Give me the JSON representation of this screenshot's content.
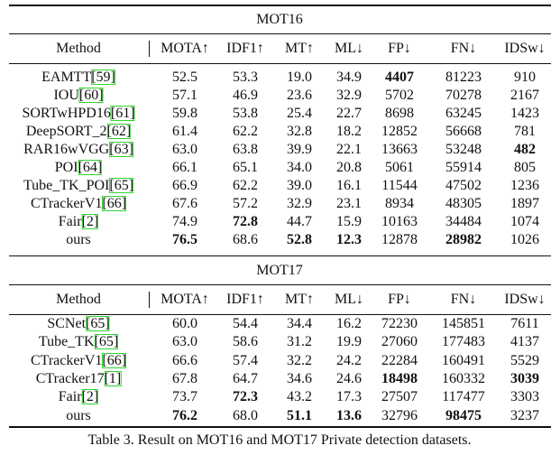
{
  "sections": [
    {
      "title": "MOT16",
      "header": [
        "Method",
        "MOTA↑",
        "IDF1↑",
        "MT↑",
        "ML↓",
        "FP↓",
        "FN↓",
        "IDSw↓"
      ],
      "rows": [
        {
          "method": "EAMTT",
          "cite": "[59]",
          "values": [
            "52.5",
            "53.3",
            "19.0",
            "34.9",
            "4407",
            "81223",
            "910"
          ],
          "bold": [
            4
          ]
        },
        {
          "method": "IOU",
          "cite": "[60]",
          "values": [
            "57.1",
            "46.9",
            "23.6",
            "32.9",
            "5702",
            "70278",
            "2167"
          ],
          "bold": []
        },
        {
          "method": "SORTwHPD16",
          "cite": "[61]",
          "values": [
            "59.8",
            "53.8",
            "25.4",
            "22.7",
            "8698",
            "63245",
            "1423"
          ],
          "bold": []
        },
        {
          "method": "DeepSORT_2",
          "cite": "[62]",
          "values": [
            "61.4",
            "62.2",
            "32.8",
            "18.2",
            "12852",
            "56668",
            "781"
          ],
          "bold": []
        },
        {
          "method": "RAR16wVGG",
          "cite": "[63]",
          "values": [
            "63.0",
            "63.8",
            "39.9",
            "22.1",
            "13663",
            "53248",
            "482"
          ],
          "bold": [
            6
          ]
        },
        {
          "method": "POI",
          "cite": "[64]",
          "values": [
            "66.1",
            "65.1",
            "34.0",
            "20.8",
            "5061",
            "55914",
            "805"
          ],
          "bold": []
        },
        {
          "method": "Tube_TK_POI",
          "cite": "[65]",
          "values": [
            "66.9",
            "62.2",
            "39.0",
            "16.1",
            "11544",
            "47502",
            "1236"
          ],
          "bold": []
        },
        {
          "method": "CTrackerV1",
          "cite": "[66]",
          "values": [
            "67.6",
            "57.2",
            "32.9",
            "23.1",
            "8934",
            "48305",
            "1897"
          ],
          "bold": []
        },
        {
          "method": "Fair",
          "cite": "[2]",
          "values": [
            "74.9",
            "72.8",
            "44.7",
            "15.9",
            "10163",
            "34484",
            "1074"
          ],
          "bold": [
            1
          ]
        },
        {
          "method": "ours",
          "cite": null,
          "values": [
            "76.5",
            "68.6",
            "52.8",
            "12.3",
            "12878",
            "28982",
            "1026"
          ],
          "bold": [
            0,
            2,
            3,
            5
          ]
        }
      ]
    },
    {
      "title": "MOT17",
      "header": [
        "Method",
        "MOTA↑",
        "IDF1↑",
        "MT↑",
        "ML↓",
        "FP↓",
        "FN↓",
        "IDSw↓"
      ],
      "rows": [
        {
          "method": "SCNet",
          "cite": "[65]",
          "values": [
            "60.0",
            "54.4",
            "34.4",
            "16.2",
            "72230",
            "145851",
            "7611"
          ],
          "bold": []
        },
        {
          "method": "Tube_TK",
          "cite": "[65]",
          "values": [
            "63.0",
            "58.6",
            "31.2",
            "19.9",
            "27060",
            "177483",
            "4137"
          ],
          "bold": []
        },
        {
          "method": "CTrackerV1",
          "cite": "[66]",
          "values": [
            "66.6",
            "57.4",
            "32.2",
            "24.2",
            "22284",
            "160491",
            "5529"
          ],
          "bold": []
        },
        {
          "method": "CTracker17",
          "cite": "[1]",
          "values": [
            "67.8",
            "64.7",
            "34.6",
            "24.6",
            "18498",
            "160332",
            "3039"
          ],
          "bold": [
            4,
            6
          ]
        },
        {
          "method": "Fair",
          "cite": "[2]",
          "values": [
            "73.7",
            "72.3",
            "43.2",
            "17.3",
            "27507",
            "117477",
            "3303"
          ],
          "bold": [
            1
          ]
        },
        {
          "method": "ours",
          "cite": null,
          "values": [
            "76.2",
            "68.0",
            "51.1",
            "13.6",
            "32796",
            "98475",
            "3237"
          ],
          "bold": [
            0,
            2,
            3,
            5
          ]
        }
      ]
    }
  ],
  "caption": "Table 3. Result on MOT16 and MOT17 Private detection datasets."
}
